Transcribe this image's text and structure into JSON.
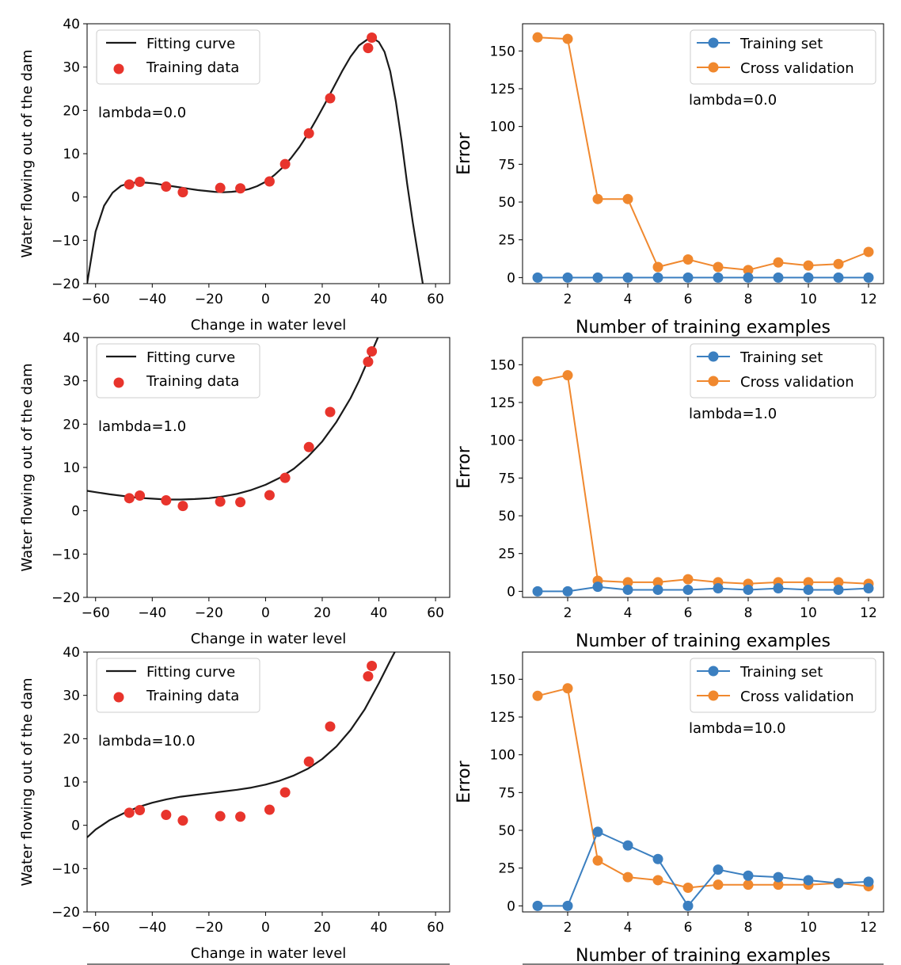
{
  "colors": {
    "fit_line": "#1a1a1a",
    "train_points": "#e8342c",
    "train_set": "#3b7fc0",
    "cross_validation": "#f0882e",
    "axes": "#000000",
    "legend_border": "#cccccc"
  },
  "chart_data": [
    {
      "type": "scatter",
      "panel": "fit",
      "annotation": "lambda=0.0",
      "xlabel": "Change in water level",
      "ylabel": "Water flowing out of the dam",
      "xlim": [
        -63,
        65
      ],
      "ylim": [
        -20,
        40
      ],
      "xticks": [
        -60,
        -40,
        -20,
        0,
        20,
        40,
        60
      ],
      "yticks": [
        -20,
        -10,
        0,
        10,
        20,
        30,
        40
      ],
      "xtick_labels": [
        "−60",
        "−40",
        "−20",
        "0",
        "20",
        "40",
        "60"
      ],
      "ytick_labels": [
        "−20",
        "−10",
        "0",
        "10",
        "20",
        "30",
        "40"
      ],
      "legend": [
        "Fitting curve",
        "Training data"
      ],
      "legend_position": "top-left",
      "points": {
        "name": "Training data",
        "x": [
          -48.1,
          -44.4,
          -35.1,
          -29.2,
          -16.0,
          -8.9,
          1.4,
          6.9,
          15.3,
          22.8,
          36.2,
          37.5
        ],
        "y": [
          2.9,
          3.5,
          2.4,
          1.1,
          2.1,
          2.0,
          3.6,
          7.6,
          14.7,
          22.8,
          34.4,
          36.8
        ]
      },
      "curve": {
        "name": "Fitting curve",
        "x": [
          -63,
          -60,
          -57,
          -54,
          -51,
          -48,
          -45,
          -42,
          -39,
          -36,
          -33,
          -30,
          -27,
          -24,
          -21,
          -18,
          -15,
          -12,
          -9,
          -6,
          -3,
          0,
          3,
          6,
          9,
          12,
          15,
          18,
          21,
          24,
          27,
          30,
          33,
          36,
          38,
          40,
          42,
          44,
          46,
          48,
          50,
          52,
          54,
          55.5
        ],
        "y": [
          -20,
          -8,
          -2,
          1,
          2.6,
          3.2,
          3.4,
          3.3,
          3.1,
          2.8,
          2.5,
          2.2,
          1.9,
          1.6,
          1.4,
          1.2,
          1.1,
          1.2,
          1.4,
          1.8,
          2.5,
          3.5,
          5.0,
          6.8,
          9.0,
          11.6,
          14.6,
          18.0,
          21.6,
          25.3,
          29.0,
          32.4,
          35.0,
          36.4,
          36.6,
          35.8,
          33.5,
          29.0,
          22.0,
          13.0,
          3.0,
          -6.0,
          -14.0,
          -20.0
        ]
      }
    },
    {
      "type": "line",
      "panel": "learning-curve",
      "annotation": "lambda=0.0",
      "xlabel": "Number of training examples",
      "ylabel": "Error",
      "xlim": [
        0.5,
        12.5
      ],
      "ylim": [
        -4,
        168
      ],
      "xticks": [
        2,
        4,
        6,
        8,
        10,
        12
      ],
      "yticks": [
        0,
        25,
        50,
        75,
        100,
        125,
        150
      ],
      "xtick_labels": [
        "2",
        "4",
        "6",
        "8",
        "10",
        "12"
      ],
      "ytick_labels": [
        "0",
        "25",
        "50",
        "75",
        "100",
        "125",
        "150"
      ],
      "legend_position": "top-right",
      "x": [
        1,
        2,
        3,
        4,
        5,
        6,
        7,
        8,
        9,
        10,
        11,
        12
      ],
      "series": [
        {
          "name": "Training set",
          "values": [
            0,
            0,
            0,
            0,
            0,
            0,
            0,
            0,
            0,
            0,
            0,
            0
          ]
        },
        {
          "name": "Cross validation",
          "values": [
            159,
            158,
            52,
            52,
            7,
            12,
            7,
            5,
            10,
            8,
            9,
            17
          ]
        }
      ]
    },
    {
      "type": "scatter",
      "panel": "fit",
      "annotation": "lambda=1.0",
      "xlabel": "Change in water level",
      "ylabel": "Water flowing out of the dam",
      "xlim": [
        -63,
        65
      ],
      "ylim": [
        -20,
        40
      ],
      "xticks": [
        -60,
        -40,
        -20,
        0,
        20,
        40,
        60
      ],
      "yticks": [
        -20,
        -10,
        0,
        10,
        20,
        30,
        40
      ],
      "xtick_labels": [
        "−60",
        "−40",
        "−20",
        "0",
        "20",
        "40",
        "60"
      ],
      "ytick_labels": [
        "−20",
        "−10",
        "0",
        "10",
        "20",
        "30",
        "40"
      ],
      "legend": [
        "Fitting curve",
        "Training data"
      ],
      "legend_position": "top-left",
      "points": {
        "name": "Training data",
        "x": [
          -48.1,
          -44.4,
          -35.1,
          -29.2,
          -16.0,
          -8.9,
          1.4,
          6.9,
          15.3,
          22.8,
          36.2,
          37.5
        ],
        "y": [
          2.9,
          3.5,
          2.4,
          1.1,
          2.1,
          2.0,
          3.6,
          7.6,
          14.7,
          22.8,
          34.4,
          36.8
        ]
      },
      "curve": {
        "name": "Fitting curve",
        "x": [
          -63,
          -60,
          -55,
          -50,
          -45,
          -40,
          -35,
          -30,
          -25,
          -20,
          -15,
          -10,
          -5,
          0,
          5,
          10,
          15,
          20,
          25,
          30,
          33,
          36,
          38,
          40
        ],
        "y": [
          4.6,
          4.3,
          3.8,
          3.4,
          3.0,
          2.8,
          2.6,
          2.6,
          2.7,
          2.9,
          3.3,
          3.9,
          4.8,
          6.0,
          7.6,
          9.7,
          12.5,
          16.0,
          20.5,
          26.0,
          30.0,
          34.5,
          37.5,
          40.5
        ]
      }
    },
    {
      "type": "line",
      "panel": "learning-curve",
      "annotation": "lambda=1.0",
      "xlabel": "Number of training examples",
      "ylabel": "Error",
      "xlim": [
        0.5,
        12.5
      ],
      "ylim": [
        -4,
        168
      ],
      "xticks": [
        2,
        4,
        6,
        8,
        10,
        12
      ],
      "yticks": [
        0,
        25,
        50,
        75,
        100,
        125,
        150
      ],
      "xtick_labels": [
        "2",
        "4",
        "6",
        "8",
        "10",
        "12"
      ],
      "ytick_labels": [
        "0",
        "25",
        "50",
        "75",
        "100",
        "125",
        "150"
      ],
      "legend_position": "top-right",
      "x": [
        1,
        2,
        3,
        4,
        5,
        6,
        7,
        8,
        9,
        10,
        11,
        12
      ],
      "series": [
        {
          "name": "Training set",
          "values": [
            0,
            0,
            3,
            1,
            1,
            1,
            2,
            1,
            2,
            1,
            1,
            2
          ]
        },
        {
          "name": "Cross validation",
          "values": [
            139,
            143,
            7,
            6,
            6,
            8,
            6,
            5,
            6,
            6,
            6,
            5
          ]
        }
      ]
    },
    {
      "type": "scatter",
      "panel": "fit",
      "annotation": "lambda=10.0",
      "xlabel": "Change in water level",
      "ylabel": "Water flowing out of the dam",
      "xlim": [
        -63,
        65
      ],
      "ylim": [
        -20,
        40
      ],
      "xticks": [
        -60,
        -40,
        -20,
        0,
        20,
        40,
        60
      ],
      "yticks": [
        -20,
        -10,
        0,
        10,
        20,
        30,
        40
      ],
      "xtick_labels": [
        "−60",
        "−40",
        "−20",
        "0",
        "20",
        "40",
        "60"
      ],
      "ytick_labels": [
        "−20",
        "−10",
        "0",
        "10",
        "20",
        "30",
        "40"
      ],
      "legend": [
        "Fitting curve",
        "Training data"
      ],
      "legend_position": "top-left",
      "points": {
        "name": "Training data",
        "x": [
          -48.1,
          -44.4,
          -35.1,
          -29.2,
          -16.0,
          -8.9,
          1.4,
          6.9,
          15.3,
          22.8,
          36.2,
          37.5
        ],
        "y": [
          2.9,
          3.5,
          2.4,
          1.1,
          2.1,
          2.0,
          3.6,
          7.6,
          14.7,
          22.8,
          34.4,
          36.8
        ]
      },
      "curve": {
        "name": "Fitting curve",
        "x": [
          -63,
          -60,
          -55,
          -50,
          -45,
          -40,
          -35,
          -30,
          -25,
          -20,
          -15,
          -10,
          -5,
          0,
          5,
          10,
          15,
          20,
          25,
          30,
          35,
          40,
          44,
          46
        ],
        "y": [
          -2.8,
          -1.0,
          1.2,
          2.8,
          4.2,
          5.2,
          6.0,
          6.6,
          7.0,
          7.4,
          7.8,
          8.2,
          8.7,
          9.4,
          10.3,
          11.5,
          13.1,
          15.3,
          18.2,
          22.0,
          26.8,
          32.8,
          38.0,
          40.5
        ]
      }
    },
    {
      "type": "line",
      "panel": "learning-curve",
      "annotation": "lambda=10.0",
      "xlabel": "Number of training examples",
      "ylabel": "Error",
      "xlim": [
        0.5,
        12.5
      ],
      "ylim": [
        -4,
        168
      ],
      "xticks": [
        2,
        4,
        6,
        8,
        10,
        12
      ],
      "yticks": [
        0,
        25,
        50,
        75,
        100,
        125,
        150
      ],
      "xtick_labels": [
        "2",
        "4",
        "6",
        "8",
        "10",
        "12"
      ],
      "ytick_labels": [
        "0",
        "25",
        "50",
        "75",
        "100",
        "125",
        "150"
      ],
      "legend_position": "top-right",
      "x": [
        1,
        2,
        3,
        4,
        5,
        6,
        7,
        8,
        9,
        10,
        11,
        12
      ],
      "series": [
        {
          "name": "Training set",
          "values": [
            0,
            0,
            49,
            40,
            31,
            0,
            24,
            20,
            19,
            17,
            15,
            16
          ]
        },
        {
          "name": "Cross validation",
          "values": [
            139,
            144,
            30,
            19,
            17,
            12,
            14,
            14,
            14,
            14,
            15,
            13
          ]
        }
      ]
    }
  ]
}
